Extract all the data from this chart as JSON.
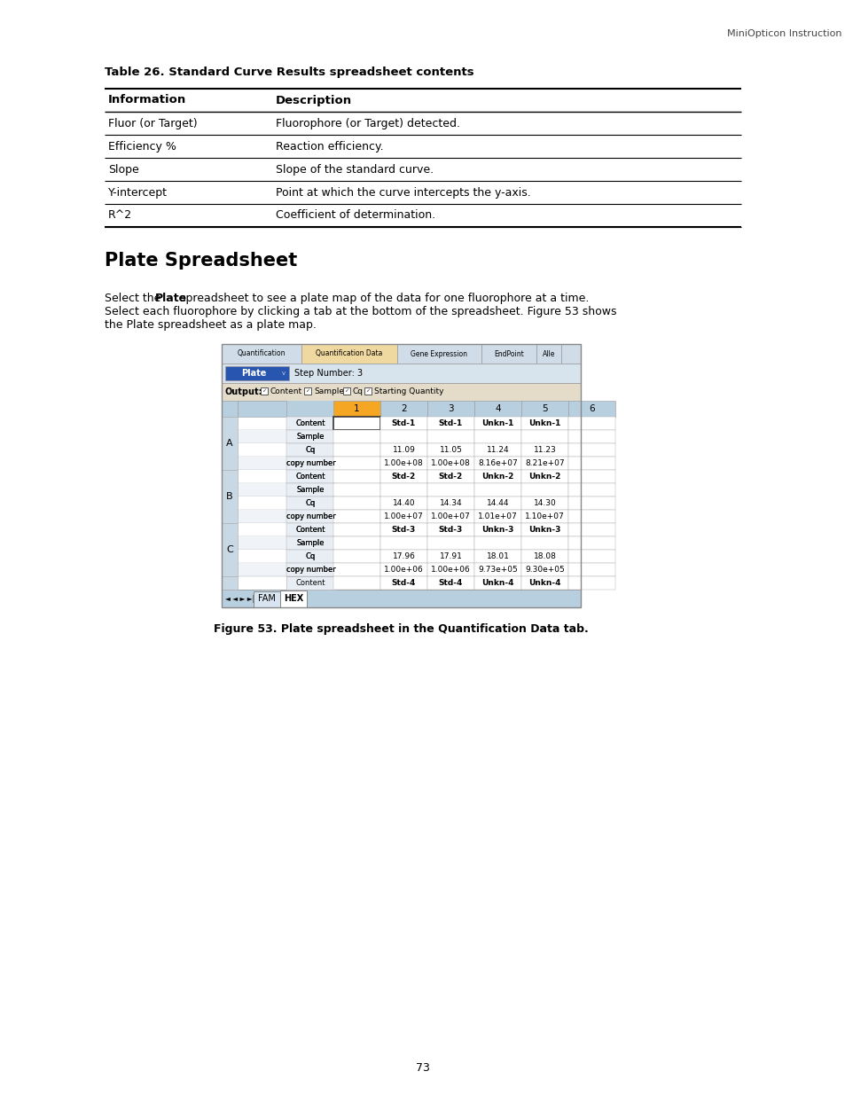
{
  "page_header": "MiniOpticon Instruction Manual",
  "page_number": "73",
  "table_title": "Table 26. Standard Curve Results spreadsheet contents",
  "table_headers": [
    "Information",
    "Description"
  ],
  "table_rows": [
    [
      "Fluor (or Target)",
      "Fluorophore (or Target) detected."
    ],
    [
      "Efficiency %",
      "Reaction efficiency."
    ],
    [
      "Slope",
      "Slope of the standard curve."
    ],
    [
      "Y-intercept",
      "Point at which the curve intercepts the y-axis."
    ],
    [
      "R^2",
      "Coefficient of determination."
    ]
  ],
  "section_title": "Plate Spreadsheet",
  "body_line1a": "Select the ",
  "body_line1b": "Plate",
  "body_line1c": " spreadsheet to see a plate map of the data for one fluorophore at a time.",
  "body_line2": "Select each fluorophore by clicking a tab at the bottom of the spreadsheet. Figure 53 shows",
  "body_line3": "the Plate spreadsheet as a plate map.",
  "figure_caption": "Figure 53. Plate spreadsheet in the Quantification Data tab.",
  "bg_color": "#ffffff",
  "tab_names": [
    "Quantification",
    "Quantification Data",
    "Gene Expression",
    "EndPoint",
    "Alle"
  ],
  "active_tab": "Quantification Data",
  "tab_widths": [
    90,
    108,
    95,
    62,
    28
  ],
  "dropdown_label": "Plate",
  "step_label": "Step Number: 3",
  "output_label": "Output:",
  "checkbox_labels": [
    "Content",
    "Sample",
    "Cq",
    "Starting Quantity"
  ],
  "col_nums": [
    "1",
    "2",
    "3",
    "4",
    "5",
    "6"
  ],
  "row_groups": [
    {
      "label": "A",
      "rows": [
        {
          "sub": "Content",
          "cols": [
            "",
            "Std-1",
            "Std-1",
            "Unkn-1",
            "Unkn-1",
            ""
          ]
        },
        {
          "sub": "Sample",
          "cols": [
            "",
            "",
            "",
            "",
            "",
            ""
          ]
        },
        {
          "sub": "Cq",
          "cols": [
            "",
            "11.09",
            "11.05",
            "11.24",
            "11.23",
            ""
          ]
        },
        {
          "sub": "copy number",
          "cols": [
            "",
            "1.00e+08",
            "1.00e+08",
            "8.16e+07",
            "8.21e+07",
            ""
          ]
        }
      ]
    },
    {
      "label": "B",
      "rows": [
        {
          "sub": "Content",
          "cols": [
            "",
            "Std-2",
            "Std-2",
            "Unkn-2",
            "Unkn-2",
            ""
          ]
        },
        {
          "sub": "Sample",
          "cols": [
            "",
            "",
            "",
            "",
            "",
            ""
          ]
        },
        {
          "sub": "Cq",
          "cols": [
            "",
            "14.40",
            "14.34",
            "14.44",
            "14.30",
            ""
          ]
        },
        {
          "sub": "copy number",
          "cols": [
            "",
            "1.00e+07",
            "1.00e+07",
            "1.01e+07",
            "1.10e+07",
            ""
          ]
        }
      ]
    },
    {
      "label": "C",
      "rows": [
        {
          "sub": "Content",
          "cols": [
            "",
            "Std-3",
            "Std-3",
            "Unkn-3",
            "Unkn-3",
            ""
          ]
        },
        {
          "sub": "Sample",
          "cols": [
            "",
            "",
            "",
            "",
            "",
            ""
          ]
        },
        {
          "sub": "Cq",
          "cols": [
            "",
            "17.96",
            "17.91",
            "18.01",
            "18.08",
            ""
          ]
        },
        {
          "sub": "copy number",
          "cols": [
            "",
            "1.00e+06",
            "1.00e+06",
            "9.73e+05",
            "9.30e+05",
            ""
          ]
        }
      ]
    }
  ],
  "row_D": {
    "sub": "Content",
    "cols": [
      "",
      "Std-4",
      "Std-4",
      "Unkn-4",
      "Unkn-4",
      ""
    ]
  },
  "bottom_tabs": [
    "FAM",
    "HEX"
  ],
  "active_bottom_tab": "HEX",
  "col1_orange": "#f5a623",
  "header_bg": "#b8cfe0",
  "tab_active_bg": "#f0d9a0",
  "tab_inactive_bg": "#d0dde8",
  "toolbar_bg": "#d8e4ed",
  "output_bg": "#e4dcc8",
  "dropdown_bg": "#2855b0",
  "nav_bg": "#b8cfe0",
  "sublabel_bg": "#e8eef4",
  "grplabel_bg": "#c8d8e4"
}
